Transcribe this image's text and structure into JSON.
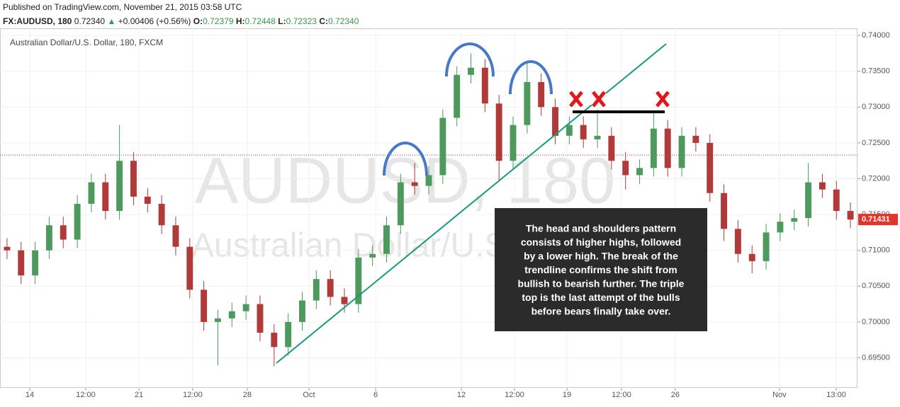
{
  "header": {
    "published": "Published on TradingView.com, November 21, 2015 03:58 UTC",
    "symbol": "FX:AUDUSD, 180",
    "price": "0.72340",
    "change_arrow": "▲",
    "change": "+0.00406 (+0.56%)",
    "o_label": "O:",
    "o": "0.72379",
    "h_label": "H:",
    "h": "0.72448",
    "l_label": "L:",
    "l": "0.72323",
    "c_label": "C:",
    "c": "0.72340"
  },
  "chart_data": {
    "type": "candlestick",
    "legend": "Australian Dollar/U.S. Dollar, 180, FXCM",
    "watermark": "AUDUSD, 180",
    "watermark_sub": "Australian Dollar/U.S. Dollar",
    "annotation": [
      "The head and shoulders pattern",
      "consists of higher highs, followed",
      "by a lower high. The break of the",
      "trendline confirms the shift from",
      "bullish to bearish further. The triple",
      "top is the last attempt of the bulls",
      "before bears finally take over."
    ],
    "up_color": "#4e9a5e",
    "down_color": "#b03a3a",
    "price_line": 0.7233,
    "last_price": 0.71431,
    "x": [
      0,
      1,
      2,
      3,
      4,
      5,
      6,
      7,
      8,
      9,
      10,
      11,
      12,
      13,
      14,
      15,
      16,
      17,
      18,
      19,
      20,
      21,
      22,
      23,
      24,
      25,
      26,
      27,
      28,
      29,
      30,
      31,
      32,
      33,
      34,
      35,
      36,
      37,
      38,
      39,
      40,
      41,
      42,
      43,
      44,
      45,
      46,
      47,
      48,
      49,
      50,
      51,
      52,
      53,
      54,
      55,
      56,
      57,
      58,
      59,
      60
    ],
    "open": [
      0.7105,
      0.71,
      0.7065,
      0.71,
      0.7135,
      0.7115,
      0.7165,
      0.7195,
      0.7155,
      0.7225,
      0.7175,
      0.7165,
      0.7135,
      0.7105,
      0.7045,
      0.7,
      0.7005,
      0.7015,
      0.7025,
      0.6985,
      0.6965,
      0.7,
      0.703,
      0.706,
      0.7035,
      0.7025,
      0.709,
      0.7095,
      0.7135,
      0.7195,
      0.719,
      0.7205,
      0.7285,
      0.7345,
      0.7355,
      0.7305,
      0.7225,
      0.7275,
      0.7335,
      0.73,
      0.726,
      0.7275,
      0.7255,
      0.726,
      0.7225,
      0.7205,
      0.7215,
      0.727,
      0.7215,
      0.726,
      0.725,
      0.718,
      0.713,
      0.7095,
      0.7085,
      0.7125,
      0.714,
      0.7145,
      0.7195,
      0.7185,
      0.7155
    ],
    "high": [
      0.7117,
      0.7112,
      0.7112,
      0.7147,
      0.7147,
      0.7177,
      0.7207,
      0.7207,
      0.7275,
      0.7237,
      0.7187,
      0.7177,
      0.7147,
      0.7117,
      0.7057,
      0.7017,
      0.7027,
      0.7037,
      0.7037,
      0.6997,
      0.7012,
      0.7042,
      0.7072,
      0.7072,
      0.7047,
      0.7102,
      0.7107,
      0.7147,
      0.7207,
      0.7222,
      0.7217,
      0.7297,
      0.7357,
      0.7375,
      0.7367,
      0.7317,
      0.7287,
      0.7365,
      0.7347,
      0.7312,
      0.7287,
      0.7287,
      0.7297,
      0.7272,
      0.7237,
      0.7227,
      0.7292,
      0.7282,
      0.7272,
      0.7272,
      0.7262,
      0.7192,
      0.7142,
      0.7107,
      0.7137,
      0.7152,
      0.7157,
      0.7222,
      0.7207,
      0.7197,
      0.7167
    ],
    "low": [
      0.7088,
      0.7053,
      0.7053,
      0.7088,
      0.7103,
      0.7103,
      0.7153,
      0.7143,
      0.7143,
      0.7163,
      0.7153,
      0.7123,
      0.7093,
      0.7033,
      0.6988,
      0.694,
      0.6993,
      0.7003,
      0.6973,
      0.6938,
      0.6953,
      0.6988,
      0.7018,
      0.7023,
      0.7013,
      0.7013,
      0.7078,
      0.7083,
      0.7123,
      0.7178,
      0.7178,
      0.7193,
      0.7273,
      0.7333,
      0.7293,
      0.7198,
      0.7213,
      0.7263,
      0.7288,
      0.7248,
      0.7248,
      0.7243,
      0.7243,
      0.7213,
      0.7185,
      0.7193,
      0.7203,
      0.7203,
      0.7203,
      0.7238,
      0.7168,
      0.7113,
      0.7083,
      0.7068,
      0.7073,
      0.7113,
      0.7128,
      0.7133,
      0.7173,
      0.7143,
      0.7131
    ],
    "close": [
      0.71,
      0.7065,
      0.71,
      0.7135,
      0.7115,
      0.7165,
      0.7195,
      0.7155,
      0.7225,
      0.7175,
      0.7165,
      0.7135,
      0.7105,
      0.7045,
      0.7,
      0.7005,
      0.7015,
      0.7025,
      0.6985,
      0.6965,
      0.7,
      0.703,
      0.706,
      0.7035,
      0.7025,
      0.709,
      0.7095,
      0.7135,
      0.7195,
      0.719,
      0.7205,
      0.7285,
      0.7345,
      0.7355,
      0.7305,
      0.7225,
      0.7275,
      0.7335,
      0.73,
      0.726,
      0.7275,
      0.7255,
      0.726,
      0.7225,
      0.7205,
      0.7215,
      0.727,
      0.7215,
      0.726,
      0.725,
      0.718,
      0.713,
      0.7095,
      0.7085,
      0.7125,
      0.714,
      0.7145,
      0.7195,
      0.7185,
      0.7155,
      0.7143
    ],
    "xlim": [
      -0.5,
      60.5
    ],
    "xticks": [
      {
        "value": 1.62,
        "label": "14"
      },
      {
        "value": 5.6,
        "label": "12:00"
      },
      {
        "value": 9.38,
        "label": "21"
      },
      {
        "value": 13.21,
        "label": "12:00"
      },
      {
        "value": 17.09,
        "label": "28"
      },
      {
        "value": 21.48,
        "label": "Oct"
      },
      {
        "value": 26.22,
        "label": "6"
      },
      {
        "value": 32.32,
        "label": "12"
      },
      {
        "value": 36.1,
        "label": "12:00"
      },
      {
        "value": 39.83,
        "label": "19"
      },
      {
        "value": 43.71,
        "label": "12:00"
      },
      {
        "value": 47.54,
        "label": "26"
      },
      {
        "value": 54.95,
        "label": "Nov"
      },
      {
        "value": 58.99,
        "label": "13:00"
      }
    ],
    "ylim": [
      0.6908,
      0.741
    ],
    "yticks": [
      {
        "value": 0.695,
        "label": "0.69500"
      },
      {
        "value": 0.7,
        "label": "0.70000"
      },
      {
        "value": 0.705,
        "label": "0.70500"
      },
      {
        "value": 0.71,
        "label": "0.71000"
      },
      {
        "value": 0.715,
        "label": "0.71500"
      },
      {
        "value": 0.72,
        "label": "0.72000"
      },
      {
        "value": 0.725,
        "label": "0.72500"
      },
      {
        "value": 0.73,
        "label": "0.73000"
      },
      {
        "value": 0.735,
        "label": "0.73500"
      },
      {
        "value": 0.74,
        "label": "0.74000"
      }
    ]
  }
}
